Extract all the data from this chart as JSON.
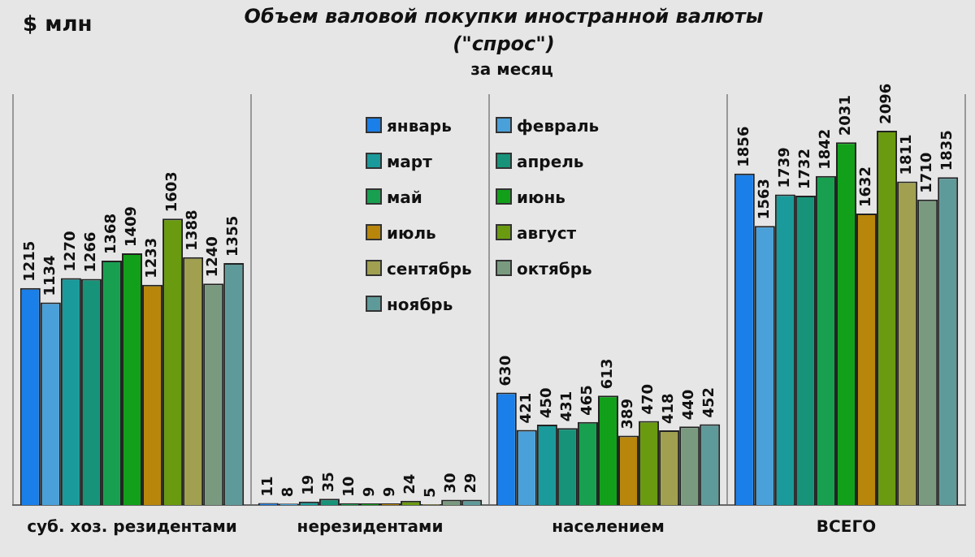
{
  "chart_data": {
    "type": "bar",
    "title": "Объем валовой покупки иностранной валюты (\"спрос\")",
    "subtitle": "за месяц",
    "ylabel": "$ млн",
    "categories": [
      "суб. хоз. резидентами",
      "нерезидентами",
      "населением",
      "ВСЕГО"
    ],
    "series": [
      {
        "name": "январь",
        "color": "#1a7fe8",
        "values": [
          1215,
          11,
          630,
          1856
        ]
      },
      {
        "name": "февраль",
        "color": "#4aa0d8",
        "values": [
          1134,
          8,
          421,
          1563
        ]
      },
      {
        "name": "март",
        "color": "#1a9a9a",
        "values": [
          1270,
          19,
          450,
          1739
        ]
      },
      {
        "name": "апрель",
        "color": "#17937a",
        "values": [
          1266,
          35,
          431,
          1732
        ]
      },
      {
        "name": "май",
        "color": "#18a050",
        "values": [
          1368,
          10,
          465,
          1842
        ]
      },
      {
        "name": "июнь",
        "color": "#12a01a",
        "values": [
          1409,
          9,
          613,
          2031
        ]
      },
      {
        "name": "июль",
        "color": "#b8860b",
        "values": [
          1233,
          9,
          389,
          1632
        ]
      },
      {
        "name": "август",
        "color": "#6a9a10",
        "values": [
          1603,
          24,
          470,
          2096
        ]
      },
      {
        "name": "сентябрь",
        "color": "#a0a050",
        "values": [
          1388,
          5,
          418,
          1811
        ]
      },
      {
        "name": "октябрь",
        "color": "#7a9a80",
        "values": [
          1240,
          30,
          440,
          1710
        ]
      },
      {
        "name": "ноябрь",
        "color": "#5f9a9a",
        "values": [
          1355,
          29,
          452,
          1835
        ]
      }
    ],
    "ylim": [
      0,
      2300
    ],
    "data_labels": true,
    "grid": "x",
    "legend": "top"
  }
}
